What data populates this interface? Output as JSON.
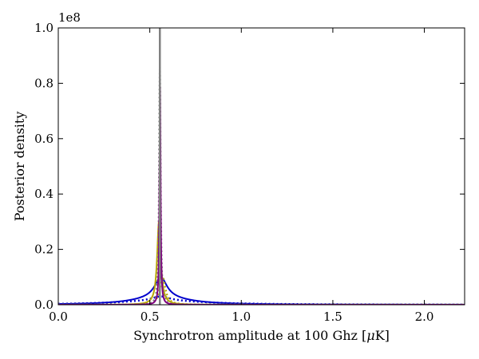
{
  "chart_data": {
    "type": "line",
    "title": "",
    "xlabel": "Synchrotron amplitude at 100 Ghz [",
    "xlabel_mu": "μ",
    "xlabel_unit_tail": "K]",
    "ylabel": "Posterior density",
    "y_scale_note": "1e8",
    "xlim": [
      0.0,
      2.22
    ],
    "ylim": [
      0.0,
      100000000
    ],
    "x_ticks": [
      0.0,
      0.5,
      1.0,
      1.5,
      2.0
    ],
    "x_tick_labels": [
      "0.0",
      "0.5",
      "1.0",
      "1.5",
      "2.0"
    ],
    "y_ticks": [
      0,
      20000000,
      40000000,
      60000000,
      80000000,
      100000000
    ],
    "y_tick_labels": [
      "0.0",
      "0.2",
      "0.4",
      "0.6",
      "0.8",
      "1.0"
    ],
    "grid": false,
    "legend": "none",
    "vertical_line": {
      "x": 0.555,
      "color": "#808080"
    },
    "series": [
      {
        "color": "#0000cc",
        "style": "solid",
        "peak_x": 0.56,
        "width": 0.04,
        "peak_y": 10000000,
        "tail_y": 2500000,
        "tail_width": 0.18
      },
      {
        "color": "#0000cc",
        "style": "dotted",
        "peak_x": 0.56,
        "width": 0.06,
        "peak_y": 3000000,
        "tail_y": 1400000,
        "tail_width": 0.3
      },
      {
        "color": "#b8a800",
        "style": "solid",
        "peak_x": 0.55,
        "width": 0.012,
        "peak_y": 30000000,
        "tail_y": 0,
        "tail_width": 0.05
      },
      {
        "color": "#b8a800",
        "style": "dotted",
        "peak_x": 0.57,
        "width": 0.018,
        "peak_y": 10000000,
        "tail_y": 0,
        "tail_width": 0.06
      },
      {
        "color": "#808080",
        "style": "dotted",
        "peak_x": 0.555,
        "width": 0.0045,
        "peak_y": 86000000,
        "tail_y": 0,
        "tail_width": 0.02
      },
      {
        "color": "#800080",
        "style": "solid",
        "peak_x": 0.556,
        "width": 0.0035,
        "peak_y": 81000000,
        "tail_y": 0,
        "tail_width": 0.02
      }
    ]
  }
}
